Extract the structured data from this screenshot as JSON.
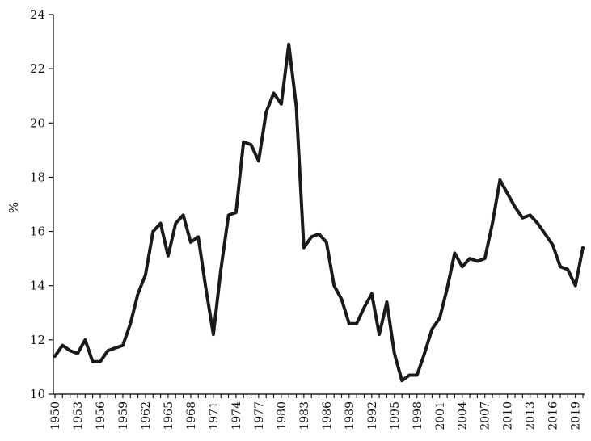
{
  "chart_data": {
    "type": "line",
    "title": "",
    "xlabel": "",
    "ylabel": "%",
    "ylim": [
      10,
      24
    ],
    "xlim": [
      1950,
      2020
    ],
    "grid": false,
    "legend": "none",
    "y_ticks": [
      10,
      12,
      14,
      16,
      18,
      20,
      22,
      24
    ],
    "x_tick_labels": [
      "1950",
      "1953",
      "1956",
      "1959",
      "1962",
      "1965",
      "1968",
      "1971",
      "1974",
      "1977",
      "1980",
      "1983",
      "1986",
      "1989",
      "1992",
      "1995",
      "1998",
      "2001",
      "2004",
      "2007",
      "2010",
      "2013",
      "2016",
      "2019"
    ],
    "line_color": "#1a1a1a",
    "series": [
      {
        "x": [
          1950,
          1951,
          1952,
          1953,
          1954,
          1955,
          1956,
          1957,
          1958,
          1959,
          1960,
          1961,
          1962,
          1963,
          1964,
          1965,
          1966,
          1967,
          1968,
          1969,
          1970,
          1971,
          1972,
          1973,
          1974,
          1975,
          1976,
          1977,
          1978,
          1979,
          1980,
          1981,
          1982,
          1983,
          1984,
          1985,
          1986,
          1987,
          1988,
          1989,
          1990,
          1991,
          1992,
          1993,
          1994,
          1995,
          1996,
          1997,
          1998,
          1999,
          2000,
          2001,
          2002,
          2003,
          2004,
          2005,
          2006,
          2007,
          2008,
          2009,
          2010,
          2011,
          2012,
          2013,
          2014,
          2015,
          2016,
          2017,
          2018,
          2019,
          2020
        ],
        "y": [
          11.4,
          11.8,
          11.6,
          11.5,
          12.0,
          11.2,
          11.2,
          11.6,
          11.7,
          11.8,
          12.6,
          13.7,
          14.4,
          16.0,
          16.3,
          15.1,
          16.3,
          16.6,
          15.6,
          15.8,
          13.9,
          12.2,
          14.6,
          16.6,
          16.7,
          19.3,
          19.2,
          18.6,
          20.4,
          21.1,
          20.7,
          22.9,
          20.6,
          15.4,
          15.8,
          15.9,
          15.6,
          14.0,
          13.5,
          12.6,
          12.6,
          13.2,
          13.7,
          12.2,
          13.4,
          11.5,
          10.5,
          10.7,
          10.7,
          11.5,
          12.4,
          12.8,
          13.9,
          15.2,
          14.7,
          15.0,
          14.9,
          15.0,
          16.3,
          17.9,
          17.4,
          16.9,
          16.5,
          16.6,
          16.3,
          15.9,
          15.5,
          14.7,
          14.6,
          14.0,
          15.4
        ]
      }
    ]
  }
}
